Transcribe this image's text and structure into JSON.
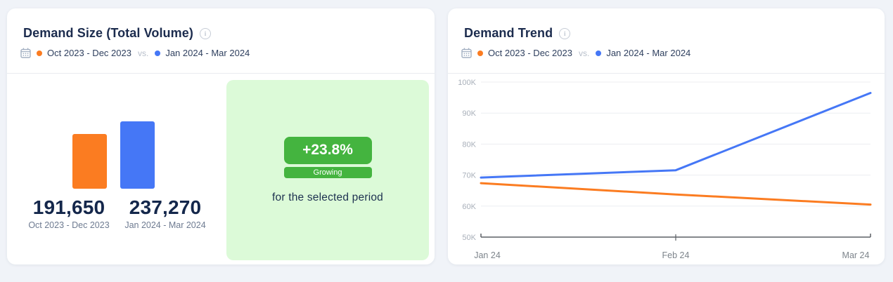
{
  "colors": {
    "orange": "#FB7C21",
    "blue": "#4577F6",
    "green": "#44B43F",
    "green_panel_bg": "#DCFAD8",
    "page_bg": "#F0F3F8",
    "navy": "#1C2C4E"
  },
  "icons": {
    "info_glyph": "i"
  },
  "demand_size": {
    "title": "Demand Size (Total Volume)",
    "legend": {
      "period1": "Oct 2023 - Dec 2023",
      "vs_label": "vs.",
      "period2": "Jan 2024 - Mar 2024"
    },
    "columns": [
      {
        "value_display": "191,650",
        "period": "Oct 2023 - Dec 2023"
      },
      {
        "value_display": "237,270",
        "period": "Jan 2024 - Mar 2024"
      }
    ],
    "growth": {
      "percent": "+23.8%",
      "status": "Growing",
      "caption": "for the selected period"
    }
  },
  "demand_trend": {
    "title": "Demand Trend",
    "legend": {
      "period1": "Oct 2023 - Dec 2023",
      "vs_label": "vs.",
      "period2": "Jan 2024 - Mar 2024"
    }
  },
  "chart_data": [
    {
      "type": "bar",
      "title": "Demand Size (Total Volume)",
      "categories": [
        "Oct 2023 - Dec 2023",
        "Jan 2024 - Mar 2024"
      ],
      "values": [
        191650,
        237270
      ],
      "value_labels": [
        "191,650",
        "237,270"
      ],
      "colors": [
        "#FB7C21",
        "#4577F6"
      ],
      "change_percent": "+23.8%",
      "change_status": "Growing"
    },
    {
      "type": "line",
      "title": "Demand Trend",
      "x": [
        "Jan 24",
        "Feb 24",
        "Mar 24"
      ],
      "series": [
        {
          "name": "Oct 2023 - Dec 2023",
          "color": "#FB7C21",
          "values": [
            67400,
            63750,
            60500
          ]
        },
        {
          "name": "Jan 2024 - Mar 2024",
          "color": "#4577F6",
          "values": [
            69200,
            71570,
            96500
          ]
        }
      ],
      "ylim": [
        50000,
        100000
      ],
      "yticks": [
        50000,
        60000,
        70000,
        80000,
        90000,
        100000
      ],
      "ytick_labels": [
        "50K",
        "60K",
        "70K",
        "80K",
        "90K",
        "100K"
      ],
      "grid": true,
      "legend_position": "header"
    }
  ]
}
